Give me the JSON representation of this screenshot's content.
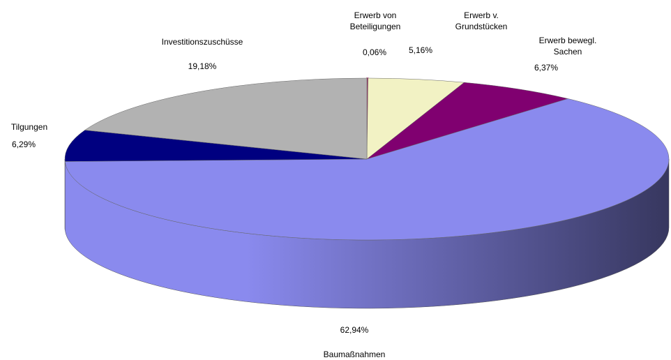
{
  "chart_data": {
    "type": "pie3d",
    "categories": [
      "Erwerb von Beteiligungen",
      "Erwerb v. Grundstücken",
      "Erwerb bewegl. Sachen",
      "Baumaßnahmen",
      "Tilgungen",
      "Investitionszuschüsse"
    ],
    "values": [
      0.06,
      5.16,
      6.37,
      62.94,
      6.29,
      19.18
    ],
    "value_labels": [
      "0,06%",
      "5,16%",
      "6,37%",
      "62,94%",
      "6,29%",
      "19,18%"
    ],
    "colors": [
      "#993366",
      "#f2f2c4",
      "#800070",
      "#8a8aee",
      "#000080",
      "#b2b2b2"
    ]
  }
}
